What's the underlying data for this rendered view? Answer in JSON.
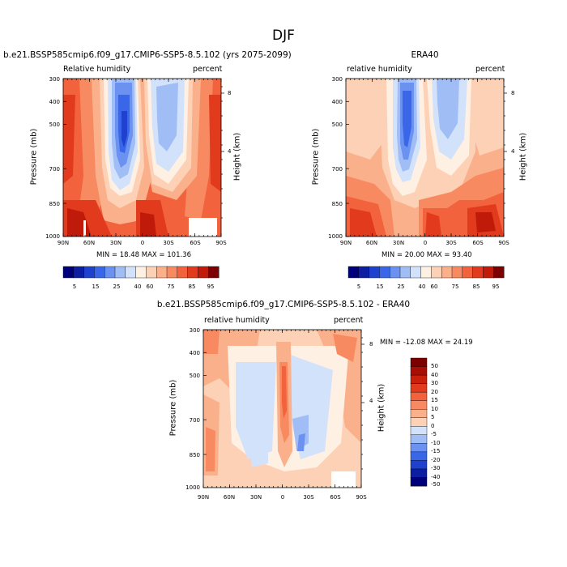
{
  "page": {
    "title": "DJF"
  },
  "chart_data": [
    {
      "type": "heatmap",
      "title": "b.e21.BSSP585cmip6.f09_g17.CMIP6-SSP5-8.5.102 (yrs 2075-2099)",
      "left_label": "Relative humidity",
      "right_label": "percent",
      "ylabel": "Pressure (mb)",
      "y2label": "Height (km)",
      "x_ticks": [
        "90N",
        "60N",
        "30N",
        "0",
        "30S",
        "60S",
        "90S"
      ],
      "y_ticks": [
        "300",
        "400",
        "500",
        "700",
        "850",
        "1000"
      ],
      "y2_ticks": [
        "8",
        "4"
      ],
      "stats": "MIN = 18.48  MAX = 101.36",
      "legend": {
        "labels": [
          "5",
          "15",
          "25",
          "40",
          "60",
          "75",
          "85",
          "95"
        ],
        "colors": [
          "#00007a",
          "#0c1fa3",
          "#1e41cf",
          "#3a66e8",
          "#6b92f0",
          "#a0bdf6",
          "#d3e2fb",
          "#fff0e4",
          "#fdd1b6",
          "#fbb08c",
          "#f88a62",
          "#f2623c",
          "#e23a1d",
          "#c01a0a",
          "#7d0000"
        ]
      }
    },
    {
      "type": "heatmap",
      "title": "ERA40",
      "left_label": "relative humidity",
      "right_label": "percent",
      "ylabel": "Pressure (mb)",
      "y2label": "Height (km)",
      "x_ticks": [
        "90N",
        "60N",
        "30N",
        "0",
        "30S",
        "60S",
        "90S"
      ],
      "y_ticks": [
        "300",
        "400",
        "500",
        "700",
        "850",
        "1000"
      ],
      "y2_ticks": [
        "8",
        "4"
      ],
      "stats": "MIN = 20.00  MAX = 93.40",
      "legend": {
        "labels": [
          "5",
          "15",
          "25",
          "40",
          "60",
          "75",
          "85",
          "95"
        ],
        "colors": [
          "#00007a",
          "#0c1fa3",
          "#1e41cf",
          "#3a66e8",
          "#6b92f0",
          "#a0bdf6",
          "#d3e2fb",
          "#fff0e4",
          "#fdd1b6",
          "#fbb08c",
          "#f88a62",
          "#f2623c",
          "#e23a1d",
          "#c01a0a",
          "#7d0000"
        ]
      }
    },
    {
      "type": "heatmap",
      "title": "b.e21.BSSP585cmip6.f09_g17.CMIP6-SSP5-8.5.102 - ERA40",
      "left_label": "relative humidity",
      "right_label": "percent",
      "ylabel": "Pressure (mb)",
      "y2label": "Height (km)",
      "x_ticks": [
        "90N",
        "60N",
        "30N",
        "0",
        "30S",
        "60S",
        "90S"
      ],
      "y_ticks": [
        "300",
        "400",
        "500",
        "700",
        "850",
        "1000"
      ],
      "y2_ticks": [
        "8",
        "4"
      ],
      "stats": "MIN = -12.08  MAX = 24.19",
      "legend": {
        "labels": [
          "50",
          "40",
          "30",
          "20",
          "15",
          "10",
          "5",
          "0",
          "-5",
          "-10",
          "-15",
          "-20",
          "-30",
          "-40",
          "-50"
        ],
        "colors": [
          "#7d0000",
          "#a80e05",
          "#c9200c",
          "#e23a1d",
          "#f2623c",
          "#f88a62",
          "#fbb08c",
          "#fdd1b6",
          "#d3e2fb",
          "#a0bdf6",
          "#6b92f0",
          "#3a66e8",
          "#1e41cf",
          "#0c1fa3",
          "#00007a"
        ]
      }
    }
  ]
}
